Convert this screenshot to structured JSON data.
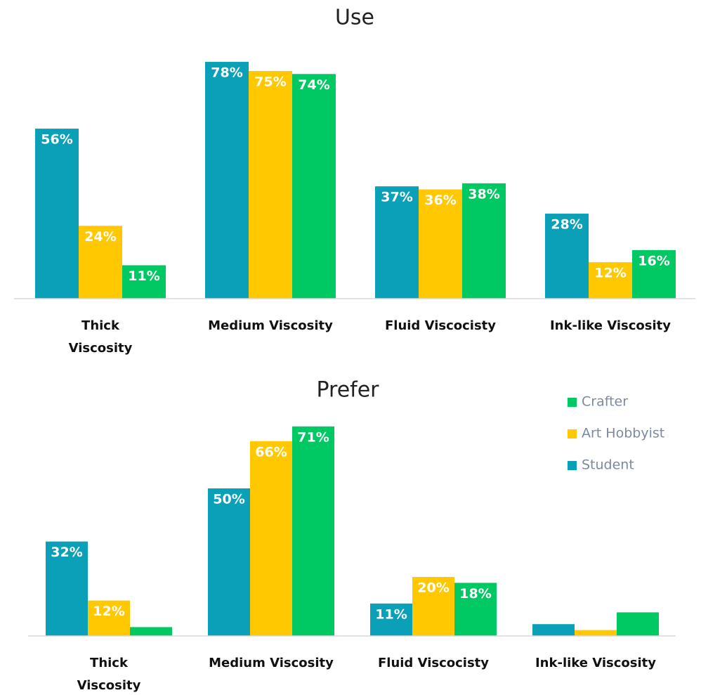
{
  "chart_data": [
    {
      "type": "bar",
      "title": "Use",
      "categories": [
        "Thick Viscosity",
        "Medium Viscosity",
        "Fluid Viscocisty",
        "Ink-like Viscosity"
      ],
      "ylim": [
        0,
        80
      ],
      "series": [
        {
          "name": "Student",
          "color": "#0aa0b7",
          "values": [
            56,
            78,
            37,
            28
          ],
          "value_labels": [
            "56%",
            "78%",
            "37%",
            "28%"
          ]
        },
        {
          "name": "Art Hobbyist",
          "color": "#ffc800",
          "values": [
            24,
            75,
            36,
            12
          ],
          "value_labels": [
            "24%",
            "75%",
            "36%",
            "12%"
          ]
        },
        {
          "name": "Crafter",
          "color": "#00c862",
          "values": [
            11,
            74,
            38,
            16
          ],
          "value_labels": [
            "11%",
            "74%",
            "38%",
            "16%"
          ]
        }
      ]
    },
    {
      "type": "bar",
      "title": "Prefer",
      "categories": [
        "Thick Viscosity",
        "Medium Viscosity",
        "Fluid Viscocisty",
        "Ink-like Viscosity"
      ],
      "ylim": [
        0,
        80
      ],
      "legend": "right",
      "series": [
        {
          "name": "Student",
          "color": "#0aa0b7",
          "values": [
            32,
            50,
            11,
            4
          ],
          "value_labels": [
            "32%",
            "50%",
            "11%",
            null
          ]
        },
        {
          "name": "Art Hobbyist",
          "color": "#ffc800",
          "values": [
            12,
            66,
            20,
            2
          ],
          "value_labels": [
            "12%",
            "66%",
            "20%",
            null
          ]
        },
        {
          "name": "Crafter",
          "color": "#00c862",
          "values": [
            3,
            71,
            18,
            8
          ],
          "value_labels": [
            null,
            "71%",
            "18%",
            null
          ]
        }
      ]
    }
  ]
}
